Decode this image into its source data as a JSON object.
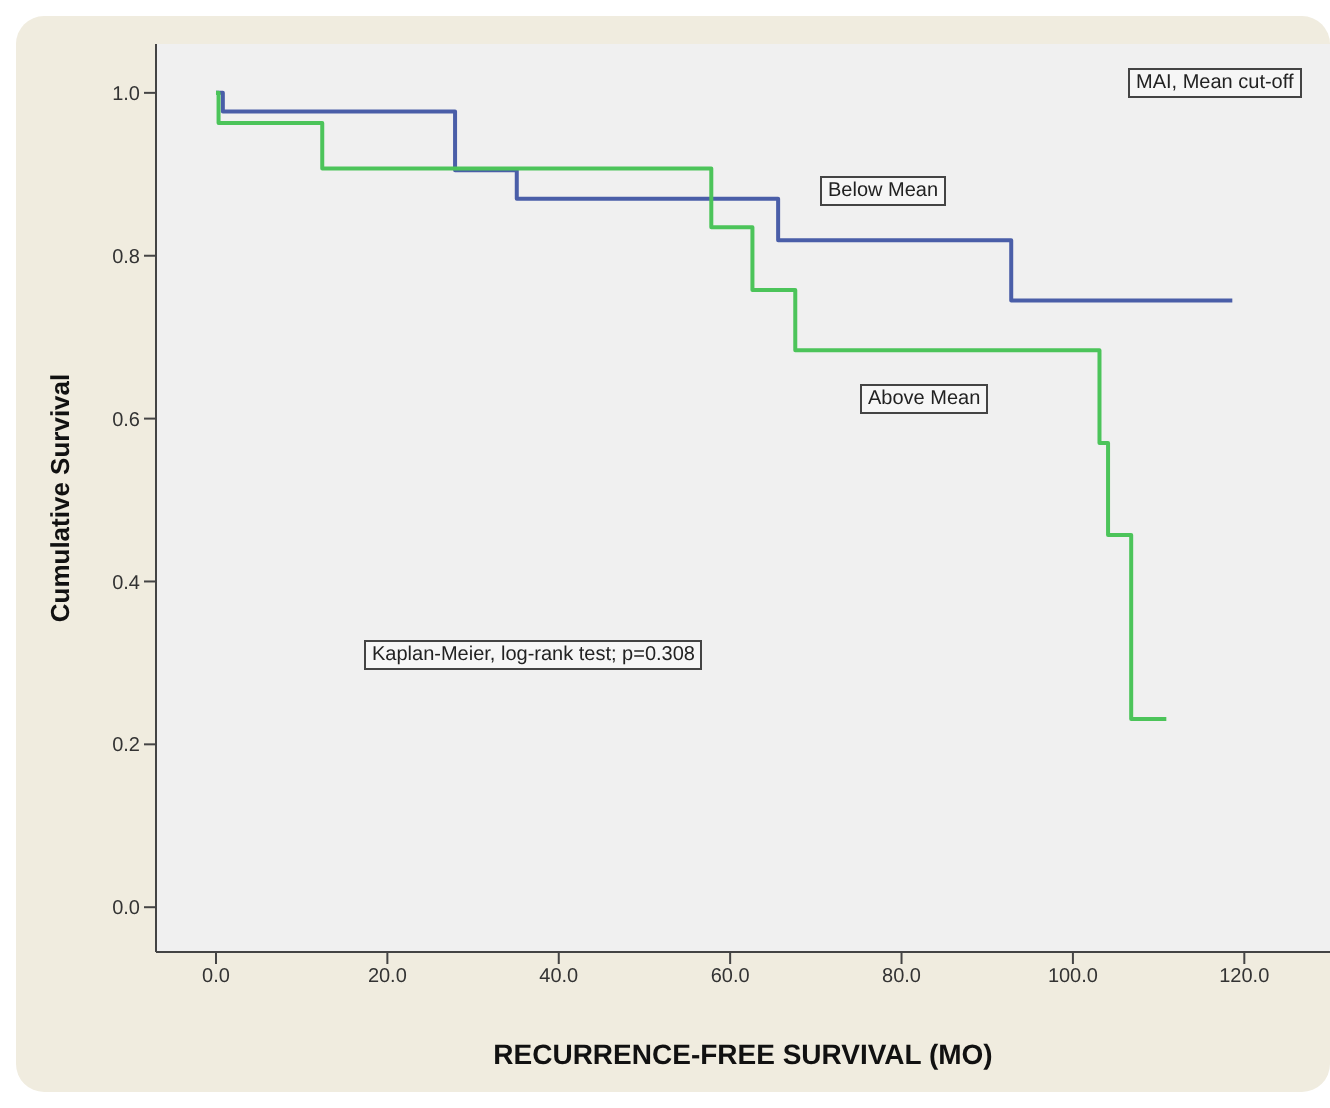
{
  "chart_data": {
    "type": "step",
    "xlabel": "RECURRENCE-FREE SURVIVAL (MO)",
    "ylabel": "Cumulative Survival",
    "legend_title": "MAI, Mean cut-off",
    "annotations": [
      "Kaplan-Meier, log-rank test; p=0.308"
    ],
    "series": [
      {
        "name": "Below Mean",
        "color": "#4a5ea8",
        "x": [
          0,
          0.8,
          27.9,
          35.1,
          65.6,
          92.8,
          118.6
        ],
        "values": [
          1.0,
          0.977,
          0.905,
          0.87,
          0.819,
          0.745,
          0.745
        ]
      },
      {
        "name": "Above Mean",
        "color": "#4cc45a",
        "x": [
          0,
          0.3,
          12.4,
          57.8,
          62.6,
          67.6,
          103.1,
          104.1,
          106.8,
          110.9
        ],
        "values": [
          1.0,
          0.963,
          0.907,
          0.835,
          0.758,
          0.684,
          0.57,
          0.457,
          0.231,
          0.231
        ]
      }
    ],
    "xlim": [
      -7,
      130
    ],
    "xticks": [
      {
        "value": 0,
        "label": "0.0"
      },
      {
        "value": 20,
        "label": "20.0"
      },
      {
        "value": 40,
        "label": "40.0"
      },
      {
        "value": 60,
        "label": "60.0"
      },
      {
        "value": 80,
        "label": "80.0"
      },
      {
        "value": 100,
        "label": "100.0"
      },
      {
        "value": 120,
        "label": "120.0"
      }
    ],
    "ylim": [
      -0.055,
      1.06
    ],
    "yticks": [
      {
        "value": 0,
        "label": "0.0"
      },
      {
        "value": 0.2,
        "label": "0.2"
      },
      {
        "value": 0.4,
        "label": "0.4"
      },
      {
        "value": 0.6,
        "label": "0.6"
      },
      {
        "value": 0.8,
        "label": "0.8"
      },
      {
        "value": 1,
        "label": "1.0"
      }
    ],
    "grid": false,
    "legend": false,
    "marker": "none",
    "line_style": "solid"
  }
}
